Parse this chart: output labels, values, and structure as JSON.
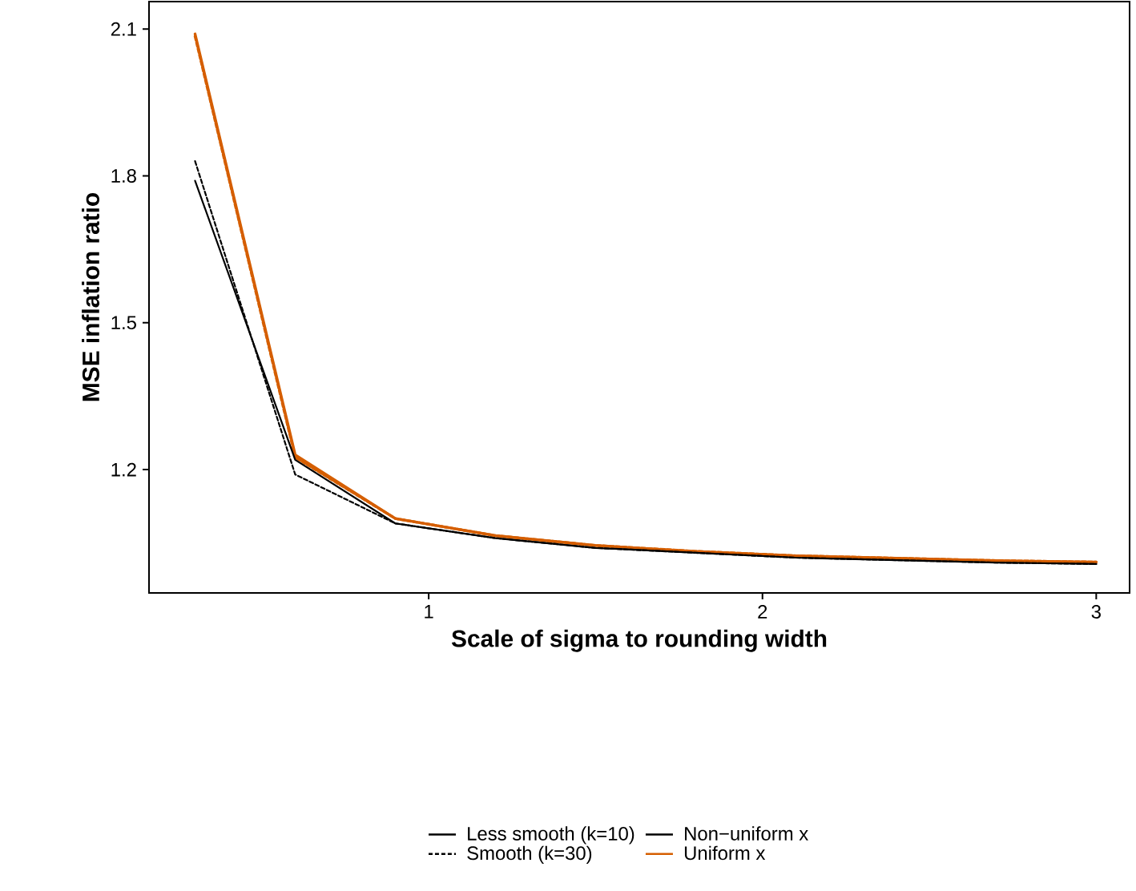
{
  "chart_data": {
    "type": "line",
    "xlabel": "Scale of sigma to rounding width",
    "ylabel": "MSE inflation ratio",
    "x": [
      0.3,
      0.6,
      0.9,
      1.2,
      1.5,
      1.8,
      2.1,
      2.4,
      2.7,
      3.0
    ],
    "series": [
      {
        "name": "Less smooth (k=10)",
        "color": "#000000",
        "line_style": "solid",
        "values": [
          1.79,
          1.22,
          1.09,
          1.06,
          1.04,
          1.03,
          1.02,
          1.015,
          1.01,
          1.007
        ]
      },
      {
        "name": "Smooth (k=30)",
        "color": "#000000",
        "line_style": "dashed",
        "values": [
          1.83,
          1.19,
          1.09,
          1.06,
          1.04,
          1.03,
          1.02,
          1.015,
          1.01,
          1.007
        ]
      },
      {
        "name": "Uniform x",
        "color": "#d55e00",
        "line_style": "solid",
        "values": [
          2.09,
          1.23,
          1.1,
          1.065,
          1.045,
          1.033,
          1.024,
          1.019,
          1.014,
          1.011
        ]
      },
      {
        "color": "#d55e00",
        "line_style": "dashed",
        "values": [
          2.085,
          1.225,
          1.1,
          1.065,
          1.045,
          1.033,
          1.024,
          1.019,
          1.014,
          1.011
        ]
      }
    ],
    "annotations": [
      "Non−uniform x"
    ],
    "xlim": [
      0.162,
      3.1
    ],
    "ylim": [
      0.948,
      2.156
    ],
    "xticks": [
      1,
      2,
      3
    ],
    "yticks": [
      1.2,
      1.5,
      1.8,
      2.1
    ],
    "legend": "bottom"
  }
}
